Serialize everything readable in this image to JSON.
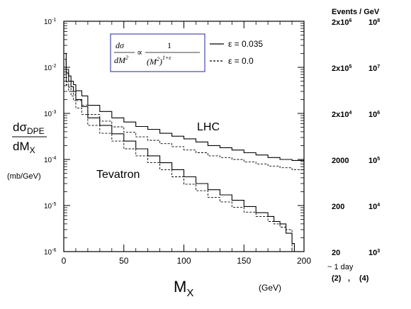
{
  "chart_data": {
    "type": "line",
    "xlabel_main": "M",
    "xlabel_sub": "X",
    "xunit": "(GeV)",
    "ylabel_top": "dσ",
    "ylabel_top_sub": "DPE",
    "ylabel_bottom": "dM",
    "ylabel_bottom_sub": "X",
    "yunit": "(mb/GeV)",
    "xlim": [
      0,
      200
    ],
    "ylim": [
      1e-06,
      0.1
    ],
    "yscale": "log",
    "x_ticks": [
      "0",
      "50",
      "100",
      "150",
      "200"
    ],
    "x_tick_values": [
      0,
      50,
      100,
      150,
      200
    ],
    "y_ticks": [
      {
        "value": 0.1,
        "base": "10",
        "exp": "-1"
      },
      {
        "value": 0.01,
        "base": "10",
        "exp": "-2"
      },
      {
        "value": 0.001,
        "base": "10",
        "exp": "-3"
      },
      {
        "value": 0.0001,
        "base": "10",
        "exp": "-4"
      },
      {
        "value": 1e-05,
        "base": "10",
        "exp": "-5"
      },
      {
        "value": 1e-06,
        "base": "10",
        "exp": "-6"
      }
    ],
    "annotations": {
      "lhc": "LHC",
      "tevatron": "Tevatron"
    },
    "legend": {
      "formula": {
        "lhs_num": "dσ",
        "lhs_den": "dM",
        "lhs_den_exp": "2",
        "prop": "∝",
        "rhs_num": "1",
        "rhs_den": "(M",
        "rhs_den_exp": "2",
        "rhs_den_close": ")",
        "rhs_den_pow": "1+ε"
      },
      "entries": [
        {
          "label": "ε = 0.035",
          "style": "solid"
        },
        {
          "label": "ε = 0.0",
          "style": "dashed"
        }
      ]
    },
    "series": [
      {
        "style": "solid",
        "x": [
          2,
          4,
          6,
          8,
          10,
          15,
          20,
          30,
          40,
          50,
          60,
          70,
          80,
          90,
          100,
          110,
          120,
          130,
          140,
          150,
          160,
          170,
          180,
          190,
          200
        ],
        "y": [
          0.02,
          0.009,
          0.0065,
          0.005,
          0.0042,
          0.0031,
          0.0024,
          0.0015,
          0.0011,
          0.0008,
          0.00065,
          0.00052,
          0.00045,
          0.00037,
          0.00032,
          0.00028,
          0.00024,
          0.0002,
          0.00018,
          0.00016,
          0.00014,
          0.000125,
          0.00011,
          0.0001,
          9.5e-05
        ]
      },
      {
        "style": "dashed",
        "x": [
          2,
          4,
          6,
          8,
          10,
          15,
          20,
          30,
          40,
          50,
          60,
          70,
          80,
          90,
          100,
          110,
          120,
          130,
          140,
          150,
          160,
          170,
          180,
          190,
          200
        ],
        "y": [
          0.009,
          0.0048,
          0.0037,
          0.003,
          0.0025,
          0.0019,
          0.0015,
          0.00095,
          0.00068,
          0.00051,
          0.00039,
          0.00031,
          0.00026,
          0.00022,
          0.00019,
          0.00016,
          0.00014,
          0.00012,
          0.00011,
          0.0001,
          8.8e-05,
          8e-05,
          7.2e-05,
          6.6e-05,
          6e-05
        ]
      },
      {
        "style": "solid",
        "x": [
          2,
          4,
          6,
          8,
          10,
          15,
          20,
          30,
          40,
          50,
          60,
          70,
          80,
          90,
          100,
          110,
          120,
          130,
          140,
          150,
          160,
          170,
          175,
          180,
          185,
          190,
          192,
          195
        ],
        "y": [
          0.015,
          0.0075,
          0.005,
          0.0038,
          0.003,
          0.002,
          0.0014,
          0.0008,
          0.00055,
          0.00036,
          0.00025,
          0.00017,
          0.00012,
          8.5e-05,
          6e-05,
          4.2e-05,
          3e-05,
          2.2e-05,
          1.7e-05,
          1.3e-05,
          9.5e-06,
          7e-06,
          5.8e-06,
          4.5e-06,
          4e-06,
          2.5e-06,
          1.5e-06,
          1e-06
        ]
      },
      {
        "style": "dashed",
        "x": [
          2,
          4,
          6,
          8,
          10,
          15,
          20,
          30,
          40,
          50,
          60,
          70,
          80,
          90,
          100,
          110,
          120,
          130,
          140,
          150,
          160,
          170,
          175,
          180,
          185,
          190,
          195
        ],
        "y": [
          0.007,
          0.0042,
          0.003,
          0.0024,
          0.0019,
          0.0013,
          0.00095,
          0.00055,
          0.00037,
          0.00025,
          0.00017,
          0.00012,
          8.5e-05,
          6e-05,
          4.2e-05,
          2.9e-05,
          2.1e-05,
          1.5e-05,
          1.2e-05,
          9.2e-06,
          7.2e-06,
          5.8e-06,
          4.5e-06,
          4e-06,
          3.4e-06,
          3e-06,
          1e-06
        ]
      }
    ]
  },
  "right_panel": {
    "header": "Events / GeV",
    "rows": [
      {
        "col1": "2x10",
        "col1_exp": "6",
        "col2": "10",
        "col2_exp": "8"
      },
      {
        "col1": "2x10",
        "col1_exp": "5",
        "col2": "10",
        "col2_exp": "7"
      },
      {
        "col1": "2x10",
        "col1_exp": "4",
        "col2": "10",
        "col2_exp": "6"
      },
      {
        "col1": "2000",
        "col1_exp": "",
        "col2": "10",
        "col2_exp": "5"
      },
      {
        "col1": "200",
        "col1_exp": "",
        "col2": "10",
        "col2_exp": "4"
      },
      {
        "col1": "20",
        "col1_exp": "",
        "col2": "10",
        "col2_exp": "3"
      }
    ],
    "footer_line1": "~ 1 day",
    "footer_col1": "(2)",
    "footer_sep": ",",
    "footer_col2": "(4)"
  }
}
